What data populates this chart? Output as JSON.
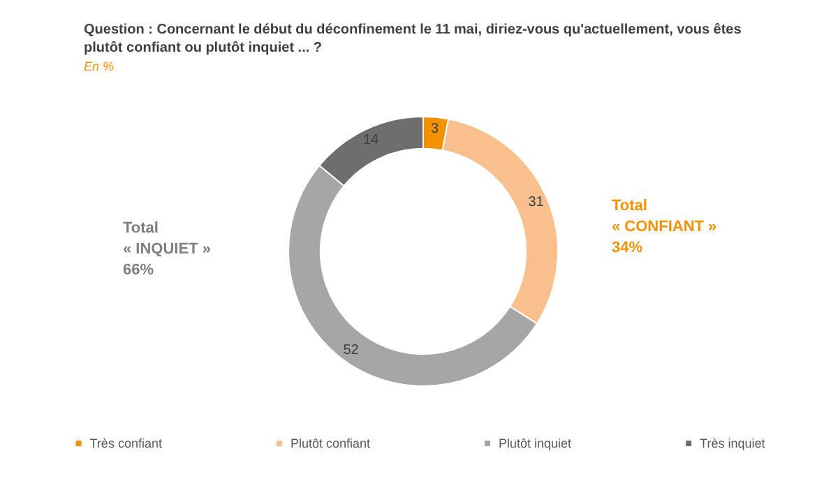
{
  "chart_data": {
    "type": "donut",
    "title": "Question : Concernant le début du déconfinement le 11 mai, diriez-vous qu'actuellement, vous êtes plutôt confiant ou plutôt inquiet ... ?",
    "subtitle": "En %",
    "categories": [
      "Très confiant",
      "Plutôt confiant",
      "Plutôt inquiet",
      "Très inquiet"
    ],
    "values": [
      3,
      31,
      52,
      14
    ],
    "colors": [
      "#f39200",
      "#f9c08e",
      "#a6a6a6",
      "#6e6e6e"
    ],
    "data_labels": true,
    "legend": "bottom",
    "annotations": [
      "Total\n« INQUIET »\n66%",
      "Total\n« CONFIANT »\n34%"
    ]
  }
}
